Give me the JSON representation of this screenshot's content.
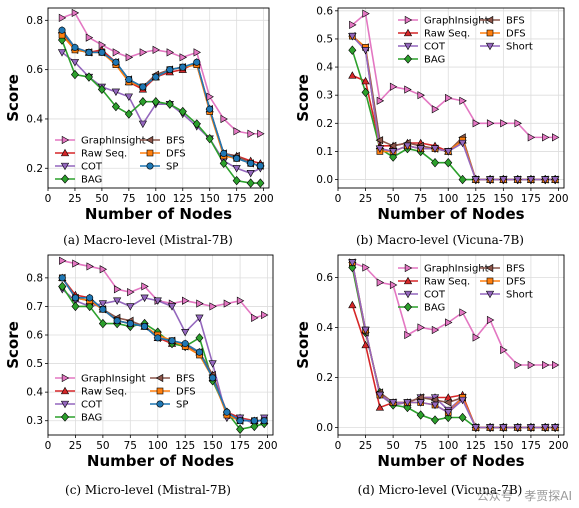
{
  "series_styles": {
    "GraphInsight": {
      "color": "#e377c2",
      "marker": "tri-right"
    },
    "Raw Seq.": {
      "color": "#d62728",
      "marker": "tri-up"
    },
    "COT": {
      "color": "#9467bd",
      "marker": "tri-down"
    },
    "BAG": {
      "color": "#2ca02c",
      "marker": "diamond"
    },
    "BFS": {
      "color": "#8c564b",
      "marker": "tri-left"
    },
    "DFS": {
      "color": "#ff7f0e",
      "marker": "square"
    },
    "SP": {
      "color": "#1f77b4",
      "marker": "circle"
    },
    "Short": {
      "color": "#9467bd",
      "marker": "tri-down"
    }
  },
  "watermark": "公众号 · 孝贾探AI",
  "chart_data": [
    {
      "type": "line",
      "caption": "(a) Macro-level (Mistral-7B)",
      "xlabel": "Number of Nodes",
      "ylabel": "Score",
      "xlim": [
        0,
        205
      ],
      "ylim": [
        0.12,
        0.85
      ],
      "xticks": [
        0,
        25,
        50,
        75,
        100,
        125,
        150,
        175,
        200
      ],
      "yticks": [
        0.2,
        0.4,
        0.6,
        0.8
      ],
      "ytick_labels": [
        "0.2",
        "0.4",
        "0.6",
        "0.8"
      ],
      "grid": true,
      "legend": "lower-left, 2 columns",
      "x": [
        13,
        25,
        38,
        50,
        63,
        75,
        88,
        100,
        113,
        125,
        138,
        150,
        163,
        175,
        188,
        197
      ],
      "series": [
        {
          "name": "GraphInsight",
          "values": [
            0.81,
            0.83,
            0.73,
            0.7,
            0.67,
            0.65,
            0.67,
            0.68,
            0.67,
            0.65,
            0.67,
            0.49,
            0.4,
            0.35,
            0.34,
            0.34
          ]
        },
        {
          "name": "Raw Seq.",
          "values": [
            0.76,
            0.69,
            0.67,
            0.68,
            0.63,
            0.55,
            0.52,
            0.57,
            0.59,
            0.6,
            0.63,
            0.44,
            0.26,
            0.25,
            0.23,
            0.22
          ]
        },
        {
          "name": "COT",
          "values": [
            0.67,
            0.63,
            0.57,
            0.53,
            0.51,
            0.49,
            0.38,
            0.46,
            0.46,
            0.42,
            0.37,
            0.32,
            0.23,
            0.2,
            0.18,
            0.2
          ]
        },
        {
          "name": "BAG",
          "values": [
            0.72,
            0.58,
            0.57,
            0.52,
            0.45,
            0.42,
            0.47,
            0.47,
            0.46,
            0.43,
            0.38,
            0.32,
            0.22,
            0.15,
            0.14,
            0.14
          ]
        },
        {
          "name": "BFS",
          "values": [
            0.75,
            0.68,
            0.67,
            0.67,
            0.63,
            0.56,
            0.53,
            0.58,
            0.6,
            0.61,
            0.62,
            0.44,
            0.26,
            0.25,
            0.22,
            0.21
          ]
        },
        {
          "name": "DFS",
          "values": [
            0.74,
            0.68,
            0.67,
            0.67,
            0.62,
            0.55,
            0.53,
            0.57,
            0.6,
            0.61,
            0.62,
            0.43,
            0.25,
            0.24,
            0.22,
            0.21
          ]
        },
        {
          "name": "SP",
          "values": [
            0.76,
            0.69,
            0.67,
            0.67,
            0.63,
            0.56,
            0.53,
            0.57,
            0.6,
            0.61,
            0.63,
            0.44,
            0.26,
            0.24,
            0.22,
            0.21
          ]
        }
      ]
    },
    {
      "type": "line",
      "caption": "(b) Macro-level (Vicuna-7B)",
      "xlabel": "Number of Nodes",
      "ylabel": "Score",
      "xlim": [
        0,
        205
      ],
      "ylim": [
        -0.03,
        0.61
      ],
      "xticks": [
        0,
        25,
        50,
        75,
        100,
        125,
        150,
        175,
        200
      ],
      "yticks": [
        0.0,
        0.1,
        0.2,
        0.3,
        0.4,
        0.5,
        0.6
      ],
      "ytick_labels": [
        "0.0",
        "0.1",
        "0.2",
        "0.3",
        "0.4",
        "0.5",
        "0.6"
      ],
      "grid": true,
      "legend": "top-right, 2 columns",
      "x": [
        13,
        25,
        38,
        50,
        63,
        75,
        88,
        100,
        113,
        125,
        138,
        150,
        163,
        175,
        188,
        197
      ],
      "series": [
        {
          "name": "GraphInsight",
          "values": [
            0.55,
            0.59,
            0.28,
            0.33,
            0.32,
            0.3,
            0.25,
            0.29,
            0.28,
            0.2,
            0.2,
            0.2,
            0.2,
            0.15,
            0.15,
            0.15
          ]
        },
        {
          "name": "Raw Seq.",
          "values": [
            0.37,
            0.35,
            0.12,
            0.12,
            0.13,
            0.13,
            0.12,
            0.1,
            0.14,
            0.0,
            0.0,
            0.0,
            0.0,
            0.0,
            0.0,
            0.0
          ]
        },
        {
          "name": "COT",
          "values": [
            0.51,
            0.46,
            0.11,
            0.1,
            0.12,
            0.11,
            0.11,
            0.1,
            0.14,
            0.0,
            0.0,
            0.0,
            0.0,
            0.0,
            0.0,
            0.0
          ]
        },
        {
          "name": "BAG",
          "values": [
            0.46,
            0.31,
            0.11,
            0.08,
            0.11,
            0.1,
            0.06,
            0.06,
            0.0,
            0.0,
            0.0,
            0.0,
            0.0,
            0.0,
            0.0,
            0.0
          ]
        },
        {
          "name": "BFS",
          "values": [
            0.51,
            0.47,
            0.14,
            0.12,
            0.13,
            0.12,
            0.11,
            0.1,
            0.15,
            0.0,
            0.0,
            0.0,
            0.0,
            0.0,
            0.0,
            0.0
          ]
        },
        {
          "name": "DFS",
          "values": [
            0.51,
            0.47,
            0.1,
            0.1,
            0.12,
            0.11,
            0.11,
            0.1,
            0.14,
            0.0,
            0.0,
            0.0,
            0.0,
            0.0,
            0.0,
            0.0
          ]
        },
        {
          "name": "Short",
          "values": [
            0.51,
            0.46,
            0.11,
            0.1,
            0.12,
            0.11,
            0.11,
            0.1,
            0.13,
            0.0,
            0.0,
            0.0,
            0.0,
            0.0,
            0.0,
            0.0
          ]
        }
      ]
    },
    {
      "type": "line",
      "caption": "(c) Micro-level (Mistral-7B)",
      "xlabel": "Number of Nodes",
      "ylabel": "Score",
      "xlim": [
        0,
        205
      ],
      "ylim": [
        0.25,
        0.88
      ],
      "xticks": [
        0,
        25,
        50,
        75,
        100,
        125,
        150,
        175,
        200
      ],
      "yticks": [
        0.3,
        0.4,
        0.5,
        0.6,
        0.7,
        0.8
      ],
      "ytick_labels": [
        "0.3",
        "0.4",
        "0.5",
        "0.6",
        "0.7",
        "0.8"
      ],
      "grid": true,
      "legend": "lower-left, 2 columns",
      "x": [
        13,
        25,
        38,
        50,
        63,
        75,
        88,
        100,
        113,
        125,
        138,
        150,
        163,
        175,
        188,
        197
      ],
      "series": [
        {
          "name": "GraphInsight",
          "values": [
            0.86,
            0.85,
            0.84,
            0.83,
            0.76,
            0.75,
            0.77,
            0.72,
            0.71,
            0.72,
            0.71,
            0.7,
            0.71,
            0.72,
            0.66,
            0.67
          ]
        },
        {
          "name": "Raw Seq.",
          "values": [
            0.8,
            0.74,
            0.73,
            0.69,
            0.65,
            0.64,
            0.63,
            0.59,
            0.57,
            0.57,
            0.54,
            0.46,
            0.33,
            0.31,
            0.3,
            0.3
          ]
        },
        {
          "name": "COT",
          "values": [
            0.76,
            0.72,
            0.7,
            0.71,
            0.72,
            0.7,
            0.73,
            0.72,
            0.7,
            0.61,
            0.66,
            0.5,
            0.31,
            0.31,
            0.29,
            0.31
          ]
        },
        {
          "name": "BAG",
          "values": [
            0.77,
            0.7,
            0.7,
            0.64,
            0.64,
            0.63,
            0.64,
            0.61,
            0.57,
            0.56,
            0.59,
            0.44,
            0.33,
            0.27,
            0.28,
            0.29
          ]
        },
        {
          "name": "BFS",
          "values": [
            0.8,
            0.73,
            0.72,
            0.69,
            0.66,
            0.65,
            0.63,
            0.59,
            0.58,
            0.56,
            0.54,
            0.46,
            0.32,
            0.3,
            0.3,
            0.3
          ]
        },
        {
          "name": "DFS",
          "values": [
            0.8,
            0.73,
            0.72,
            0.69,
            0.65,
            0.64,
            0.63,
            0.6,
            0.58,
            0.56,
            0.53,
            0.45,
            0.32,
            0.3,
            0.3,
            0.3
          ]
        },
        {
          "name": "SP",
          "values": [
            0.8,
            0.73,
            0.73,
            0.69,
            0.65,
            0.64,
            0.63,
            0.59,
            0.58,
            0.57,
            0.54,
            0.45,
            0.33,
            0.3,
            0.3,
            0.3
          ]
        }
      ]
    },
    {
      "type": "line",
      "caption": "(d) Micro-level (Vicuna-7B)",
      "xlabel": "Number of Nodes",
      "ylabel": "Score",
      "xlim": [
        0,
        205
      ],
      "ylim": [
        -0.03,
        0.69
      ],
      "xticks": [
        0,
        25,
        50,
        75,
        100,
        125,
        150,
        175,
        200
      ],
      "yticks": [
        0.0,
        0.2,
        0.4,
        0.6
      ],
      "ytick_labels": [
        "0.0",
        "0.2",
        "0.4",
        "0.6"
      ],
      "grid": true,
      "legend": "top-right, 2 columns",
      "x": [
        13,
        25,
        38,
        50,
        63,
        75,
        88,
        100,
        113,
        125,
        138,
        150,
        163,
        175,
        188,
        197
      ],
      "series": [
        {
          "name": "GraphInsight",
          "values": [
            0.66,
            0.64,
            0.58,
            0.57,
            0.37,
            0.4,
            0.39,
            0.42,
            0.46,
            0.36,
            0.43,
            0.31,
            0.25,
            0.25,
            0.25,
            0.25
          ]
        },
        {
          "name": "Raw Seq.",
          "values": [
            0.49,
            0.33,
            0.08,
            0.1,
            0.1,
            0.12,
            0.12,
            0.12,
            0.13,
            0.0,
            0.0,
            0.0,
            0.0,
            0.0,
            0.0,
            0.0
          ]
        },
        {
          "name": "COT",
          "values": [
            0.66,
            0.39,
            0.13,
            0.09,
            0.1,
            0.12,
            0.12,
            0.07,
            0.12,
            0.0,
            0.0,
            0.0,
            0.0,
            0.0,
            0.0,
            0.0
          ]
        },
        {
          "name": "BAG",
          "values": [
            0.64,
            0.38,
            0.14,
            0.09,
            0.08,
            0.05,
            0.03,
            0.04,
            0.04,
            0.0,
            0.0,
            0.0,
            0.0,
            0.0,
            0.0,
            0.0
          ]
        },
        {
          "name": "BFS",
          "values": [
            0.66,
            0.38,
            0.14,
            0.1,
            0.1,
            0.12,
            0.11,
            0.1,
            0.12,
            0.0,
            0.0,
            0.0,
            0.0,
            0.0,
            0.0,
            0.0
          ]
        },
        {
          "name": "DFS",
          "values": [
            0.66,
            0.39,
            0.13,
            0.1,
            0.1,
            0.1,
            0.09,
            0.06,
            0.12,
            0.0,
            0.0,
            0.0,
            0.0,
            0.0,
            0.0,
            0.0
          ]
        },
        {
          "name": "Short",
          "values": [
            0.66,
            0.39,
            0.13,
            0.1,
            0.1,
            0.1,
            0.09,
            0.06,
            0.11,
            0.0,
            0.0,
            0.0,
            0.0,
            0.0,
            0.0,
            0.0
          ]
        }
      ]
    }
  ]
}
